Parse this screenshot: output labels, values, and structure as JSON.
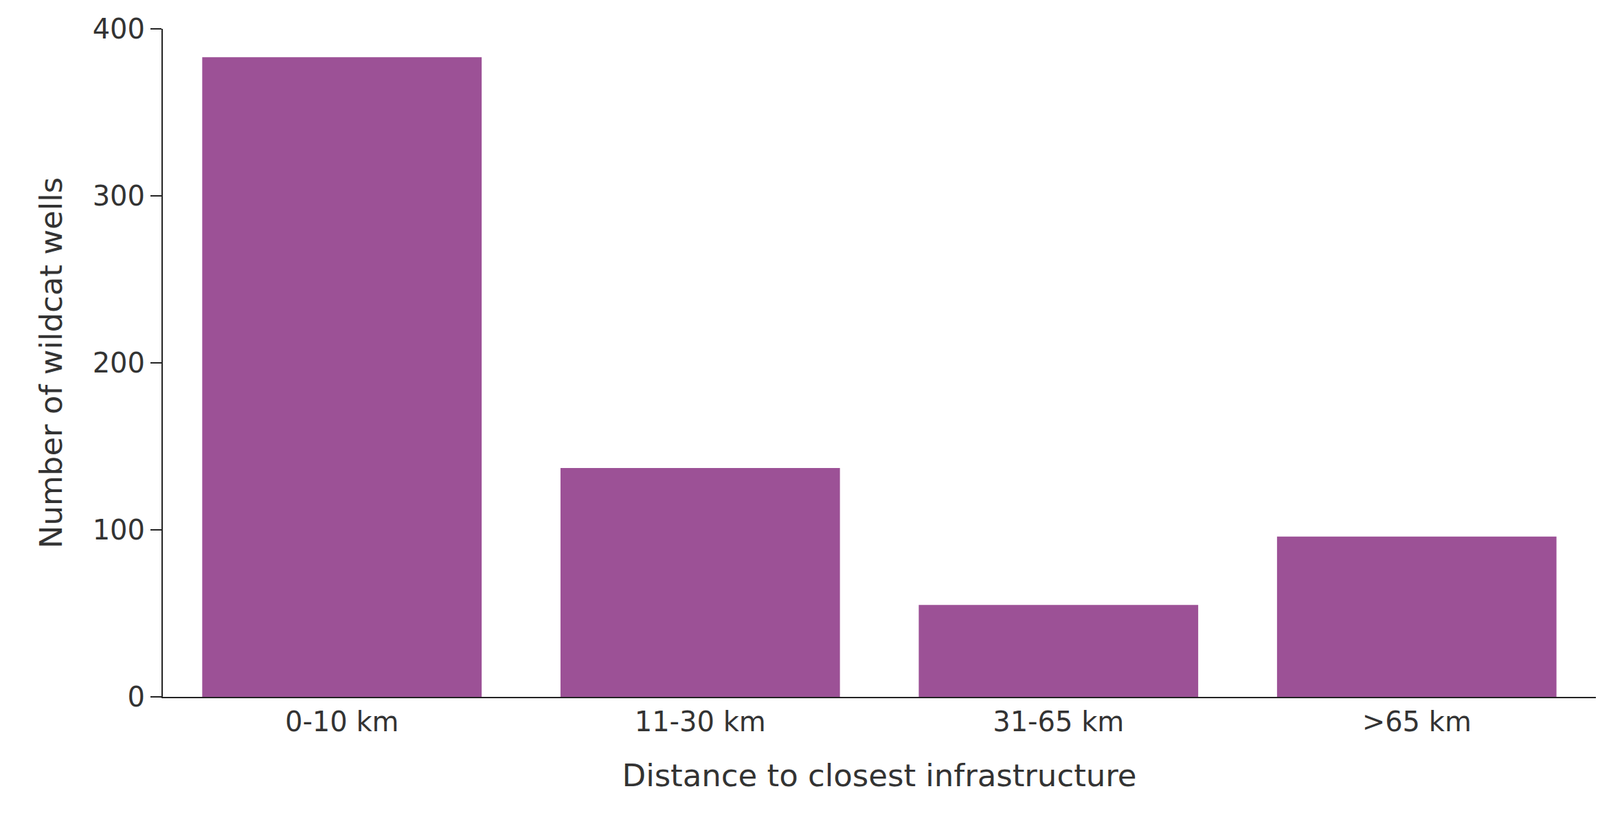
{
  "chart_data": {
    "type": "bar",
    "x_label": "Distance to closest infrastructure",
    "y_label": "Number of wildcat wells",
    "categories": [
      "0-10 km",
      "11-30 km",
      "31-65 km",
      ">65 km"
    ],
    "values": [
      383,
      137,
      55,
      96
    ],
    "color": "#9c5196",
    "ylim": [
      0,
      400
    ],
    "yticks": [
      0,
      100,
      200,
      300,
      400
    ],
    "grid": false
  }
}
